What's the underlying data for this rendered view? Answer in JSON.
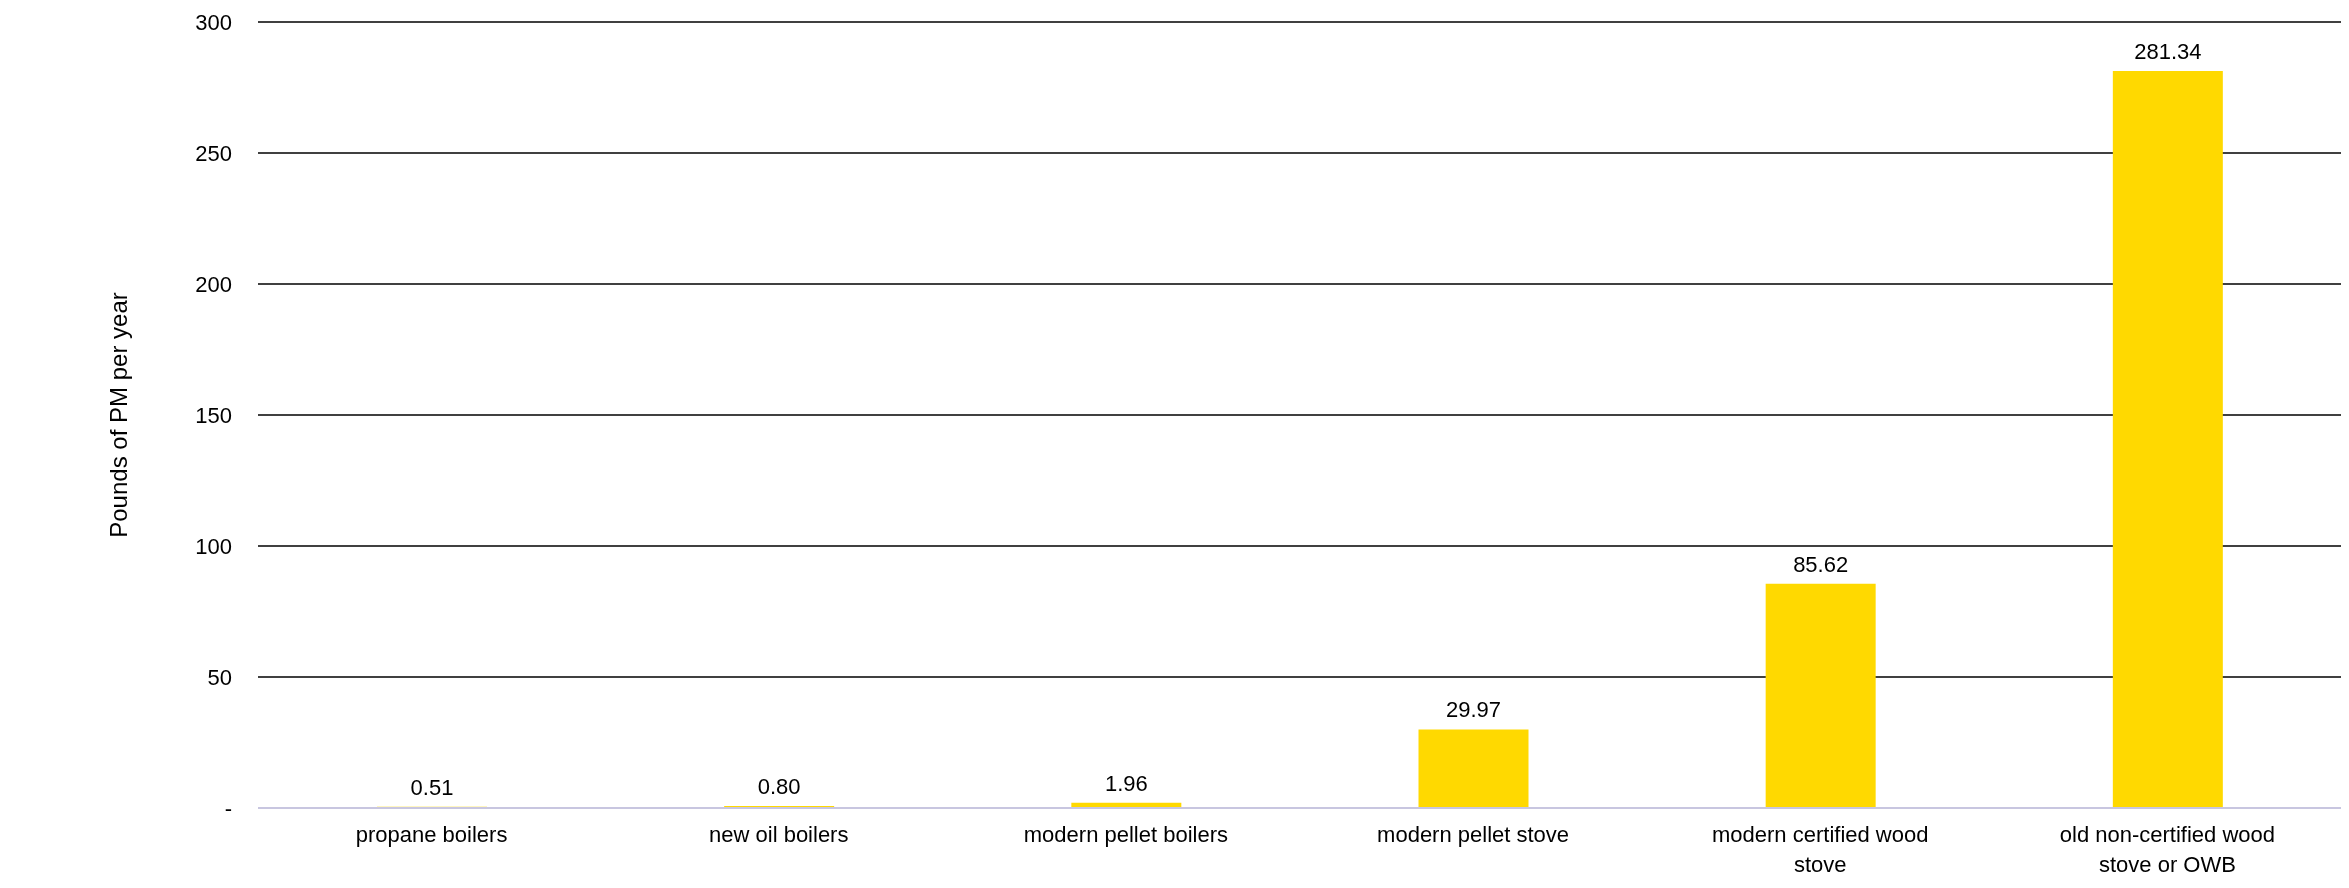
{
  "chart_data": {
    "type": "bar",
    "ylabel": "Pounds of PM per year",
    "categories": [
      "propane boilers",
      "new oil boilers",
      "modern pellet boilers",
      "modern pellet stove",
      "modern certified wood stove",
      "old non-certified wood stove or OWB"
    ],
    "values": [
      0.51,
      0.8,
      1.96,
      29.97,
      85.62,
      281.34
    ],
    "value_labels": [
      "0.51",
      "0.80",
      "1.96",
      "29.97",
      "85.62",
      "281.34"
    ],
    "color": "#ffd900",
    "ylim": [
      0,
      300
    ],
    "yticks": [
      {
        "value": 0,
        "label": "-"
      },
      50,
      100,
      150,
      200,
      250,
      300
    ],
    "grid": "y"
  }
}
